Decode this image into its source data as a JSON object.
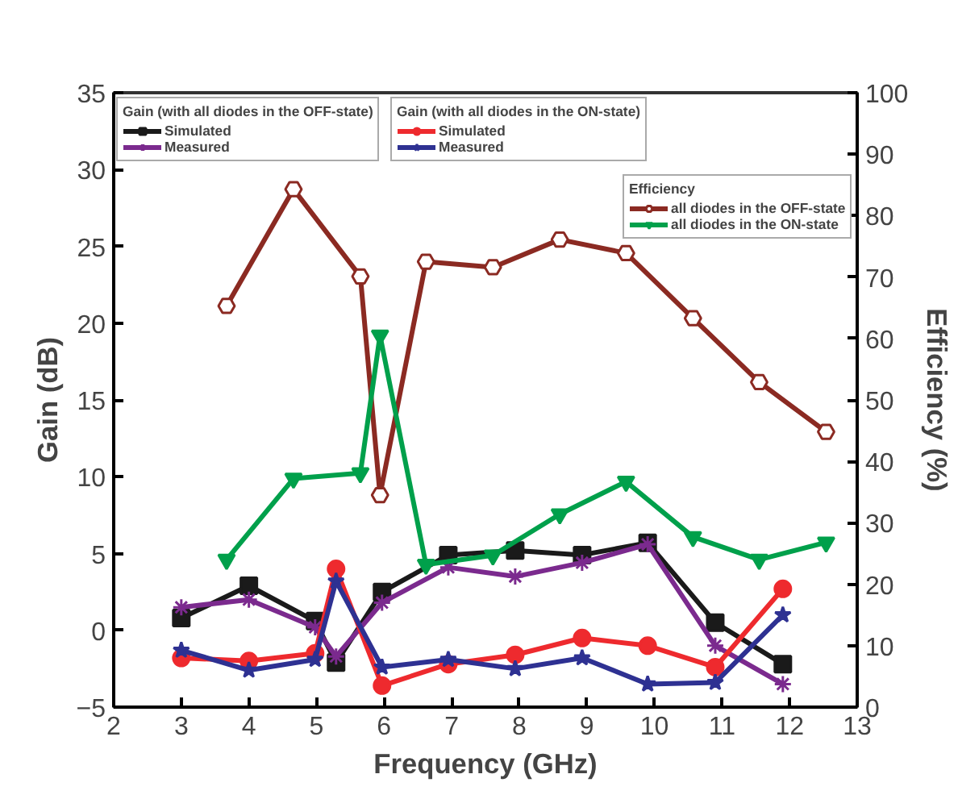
{
  "chart_data": {
    "type": "line",
    "xlabel": "Frequency (GHz)",
    "ylabel": "Gain (dB)",
    "y2label": "Efficiency (%)",
    "xlim": [
      2,
      13
    ],
    "xticks": [
      2,
      3,
      4,
      5,
      6,
      7,
      8,
      9,
      10,
      11,
      12,
      13
    ],
    "ylim": [
      -5,
      35
    ],
    "yticks": [
      -5,
      0,
      5,
      10,
      15,
      20,
      25,
      30,
      35
    ],
    "y2lim": [
      0,
      100
    ],
    "y2ticks": [
      0,
      10,
      20,
      30,
      40,
      50,
      60,
      70,
      80,
      90,
      100
    ],
    "legend": "top",
    "legend_title": [
      "Gain (with all diodes in the OFF-state)",
      "Gain (with all diodes in the ON-state)",
      "Efficiency"
    ],
    "grid": false,
    "series": [
      {
        "name": "Simulated",
        "color": "#1a1a1a",
        "marker": "square",
        "x": [
          3,
          4,
          4.98,
          5.29,
          5.97,
          6.95,
          7.94,
          8.93,
          9.9,
          10.9,
          11.9
        ],
        "values": [
          0.8,
          2.9,
          0.6,
          -2.1,
          2.5,
          4.9,
          5.2,
          4.9,
          5.7,
          0.5,
          -2.2
        ]
      },
      {
        "name": "Measured",
        "color": "#7b2a8e",
        "marker": "cross",
        "x": [
          3,
          4,
          4.98,
          5.29,
          5.97,
          6.95,
          7.94,
          8.93,
          9.9,
          10.9,
          11.9
        ],
        "values": [
          1.5,
          2.0,
          0.2,
          -1.7,
          1.8,
          4.1,
          3.5,
          4.4,
          5.6,
          -1.0,
          -3.5
        ]
      },
      {
        "name": "Simulated",
        "color": "#ee2a2e",
        "marker": "circle",
        "x": [
          3,
          4,
          4.98,
          5.29,
          5.97,
          6.95,
          7.94,
          8.93,
          9.9,
          10.9,
          11.9
        ],
        "values": [
          -1.8,
          -2.0,
          -1.5,
          4.0,
          -3.6,
          -2.2,
          -1.6,
          -0.5,
          -1.0,
          -2.4,
          2.7
        ]
      },
      {
        "name": "Measured",
        "color": "#2e3192",
        "marker": "star",
        "x": [
          3,
          4,
          4.98,
          5.29,
          5.97,
          6.95,
          7.94,
          8.93,
          9.9,
          10.9,
          11.9
        ],
        "values": [
          -1.3,
          -2.6,
          -1.9,
          3.2,
          -2.4,
          -1.9,
          -2.5,
          -1.8,
          -3.5,
          -3.4,
          1.0
        ]
      },
      {
        "name": "all diodes in the OFF-state",
        "color": "#8b2a22",
        "marker": "circle",
        "axis": "y2",
        "x": [
          3.67,
          4.66,
          5.65,
          5.94,
          6.62,
          7.61,
          8.6,
          9.58,
          10.57,
          11.55,
          12.54
        ],
        "values": [
          65.3,
          84.3,
          70.1,
          34.5,
          72.5,
          71.6,
          76.1,
          73.9,
          63.3,
          52.9,
          44.8
        ]
      },
      {
        "name": "all diodes in the ON-state",
        "color": "#00a04b",
        "marker": "triangle",
        "axis": "y2",
        "x": [
          3.67,
          4.66,
          5.65,
          5.94,
          6.62,
          7.61,
          8.6,
          9.58,
          10.57,
          11.55,
          12.54
        ],
        "values": [
          24.0,
          37.2,
          38.1,
          60.5,
          23.2,
          24.7,
          31.4,
          36.7,
          27.7,
          24.0,
          26.8
        ]
      }
    ]
  }
}
